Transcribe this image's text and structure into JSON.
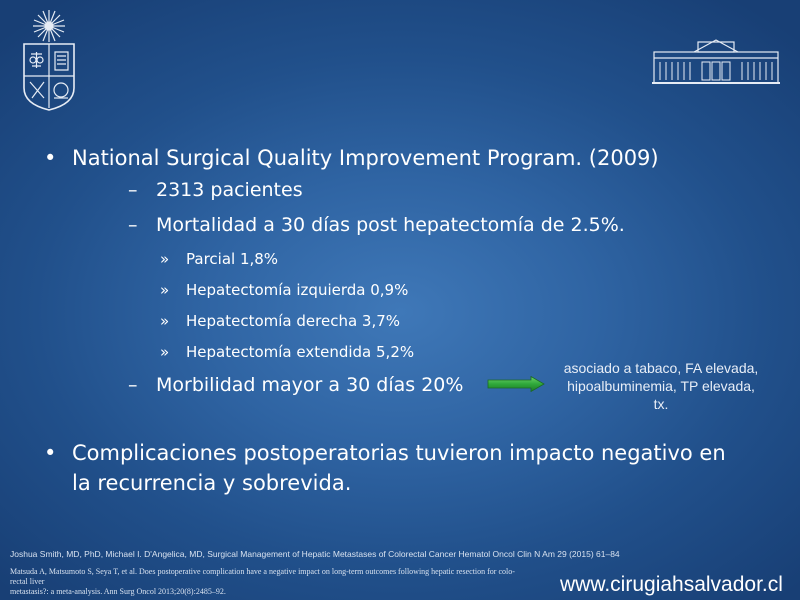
{
  "bullets": {
    "main1": "National Surgical Quality Improvement Program.  (2009)",
    "sub1": "2313 pacientes",
    "sub2": "Mortalidad a 30 días post hepatectomía de 2.5%.",
    "subsub": [
      "Parcial 1,8%",
      "Hepatectomía izquierda 0,9%",
      "Hepatectomía derecha 3,7%",
      "Hepatectomía extendida 5,2%"
    ],
    "sub3": "Morbilidad mayor a 30 días 20%",
    "main2": "Complicaciones postoperatorias tuvieron impacto negativo en la recurrencia y sobrevida."
  },
  "markers": {
    "level1": "•",
    "level2": "–",
    "level3": "»"
  },
  "note_lines": [
    "asociado a tabaco, FA elevada,",
    "hipoalbuminemia, TP elevada,",
    "tx."
  ],
  "references": {
    "ref1": "Joshua Smith, MD, PhD, Michael I. D'Angelica, MD, Surgical Management of Hepatic Metastases of Colorectal Cancer Hematol Oncol Clin N Am 29 (2015) 61–84",
    "ref2_line1": "Matsuda A, Matsumoto S, Seya T, et al. Does postoperative complication have a negative impact on long-term outcomes following hepatic resection for colo- rectal liver",
    "ref2_line2": "metastasis?: a meta-analysis. Ann Surg Oncol 2013;20(8):2485–92."
  },
  "website": "www.cirugiahsalvador.cl",
  "icons": {
    "left_logo": "university-crest-icon",
    "right_logo": "hospital-building-icon",
    "arrow": "right-arrow-icon"
  },
  "colors": {
    "background_center": "#3f78b8",
    "background_edge": "#183f75",
    "arrow_green": "#2fa83a",
    "text": "#ffffff"
  }
}
